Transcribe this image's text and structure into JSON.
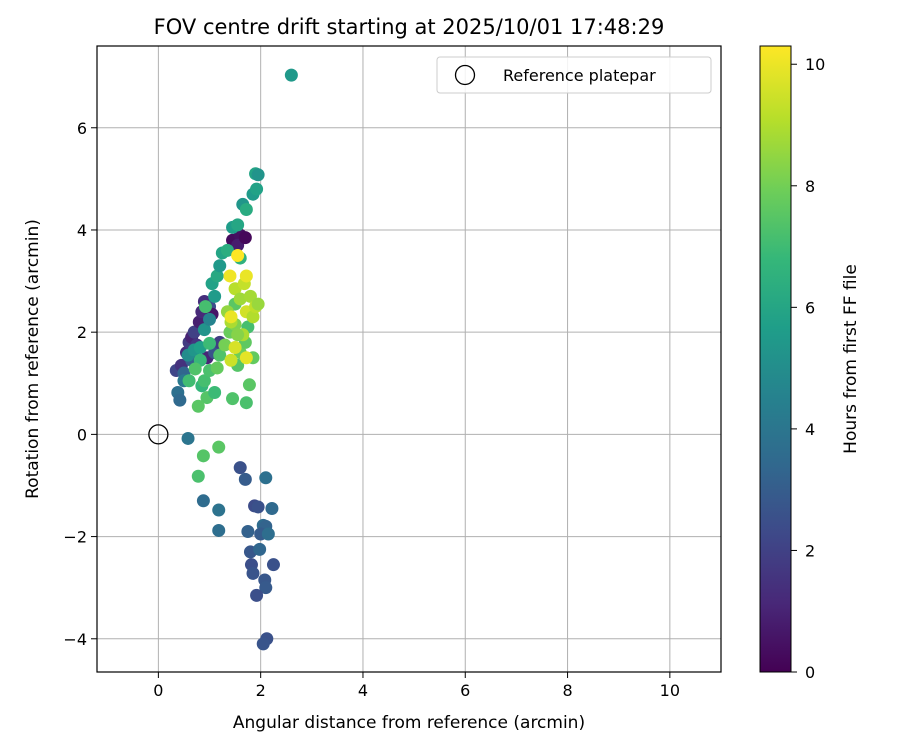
{
  "chart_data": {
    "type": "scatter",
    "title": "FOV centre drift starting at 2025/10/01 17:48:29",
    "xlabel": "Angular distance from reference (arcmin)",
    "ylabel": "Rotation from reference (arcmin)",
    "xlim": [
      -1.2,
      11.0
    ],
    "ylim": [
      -4.65,
      7.6
    ],
    "xticks": [
      0,
      2,
      4,
      6,
      8,
      10
    ],
    "yticks": [
      -4,
      -2,
      0,
      2,
      4,
      6
    ],
    "xtick_labels": [
      "0",
      "2",
      "4",
      "6",
      "8",
      "10"
    ],
    "ytick_labels": [
      "−4",
      "−2",
      "0",
      "2",
      "4",
      "6"
    ],
    "grid": true,
    "legend": {
      "placement": "top-right",
      "entries": [
        "Reference platepar"
      ]
    },
    "reference_point": {
      "x": 0,
      "y": 0,
      "label": "Reference platepar"
    },
    "colorbar": {
      "label": "Hours from first FF file",
      "min": 0,
      "max": 10.3,
      "ticks": [
        0,
        2,
        4,
        6,
        8,
        10
      ],
      "tick_labels": [
        "0",
        "2",
        "4",
        "6",
        "8",
        "10"
      ],
      "colormap": "viridis"
    },
    "points": [
      {
        "x": 0.35,
        "y": 1.25,
        "h": 2.2
      },
      {
        "x": 0.45,
        "y": 1.35,
        "h": 1.5
      },
      {
        "x": 0.55,
        "y": 1.6,
        "h": 1.3
      },
      {
        "x": 0.6,
        "y": 1.8,
        "h": 1.8
      },
      {
        "x": 0.65,
        "y": 1.9,
        "h": 1.0
      },
      {
        "x": 0.7,
        "y": 2.0,
        "h": 2.0
      },
      {
        "x": 0.75,
        "y": 1.75,
        "h": 1.6
      },
      {
        "x": 0.8,
        "y": 2.2,
        "h": 0.9
      },
      {
        "x": 0.85,
        "y": 2.4,
        "h": 1.2
      },
      {
        "x": 0.9,
        "y": 2.6,
        "h": 1.4
      },
      {
        "x": 1.0,
        "y": 2.5,
        "h": 2.5
      },
      {
        "x": 1.05,
        "y": 2.35,
        "h": 0.6
      },
      {
        "x": 0.95,
        "y": 1.5,
        "h": 1.1
      },
      {
        "x": 1.1,
        "y": 1.6,
        "h": 2.7
      },
      {
        "x": 1.2,
        "y": 1.8,
        "h": 1.9
      },
      {
        "x": 1.45,
        "y": 3.8,
        "h": 0.3
      },
      {
        "x": 1.6,
        "y": 3.9,
        "h": 0.4
      },
      {
        "x": 1.55,
        "y": 3.7,
        "h": 0.8
      },
      {
        "x": 1.7,
        "y": 3.85,
        "h": 0.2
      },
      {
        "x": 0.5,
        "y": 1.2,
        "h": 3.4
      },
      {
        "x": 0.65,
        "y": 1.45,
        "h": 3.2
      },
      {
        "x": 0.38,
        "y": 0.82,
        "h": 3.8
      },
      {
        "x": 0.42,
        "y": 0.67,
        "h": 3.5
      },
      {
        "x": 0.5,
        "y": 1.05,
        "h": 4.2
      },
      {
        "x": 0.58,
        "y": 1.55,
        "h": 5.0
      },
      {
        "x": 0.7,
        "y": 1.65,
        "h": 5.4
      },
      {
        "x": 0.82,
        "y": 1.7,
        "h": 5.8
      },
      {
        "x": 0.9,
        "y": 2.05,
        "h": 5.3
      },
      {
        "x": 1.0,
        "y": 2.25,
        "h": 4.6
      },
      {
        "x": 1.1,
        "y": 2.7,
        "h": 5.6
      },
      {
        "x": 1.05,
        "y": 2.95,
        "h": 5.9
      },
      {
        "x": 1.15,
        "y": 3.1,
        "h": 6.2
      },
      {
        "x": 1.2,
        "y": 3.3,
        "h": 5.5
      },
      {
        "x": 1.25,
        "y": 3.55,
        "h": 6.0
      },
      {
        "x": 1.35,
        "y": 3.6,
        "h": 6.4
      },
      {
        "x": 1.45,
        "y": 4.05,
        "h": 5.7
      },
      {
        "x": 1.55,
        "y": 4.1,
        "h": 6.1
      },
      {
        "x": 1.6,
        "y": 3.45,
        "h": 6.6
      },
      {
        "x": 1.65,
        "y": 4.5,
        "h": 5.4
      },
      {
        "x": 1.72,
        "y": 4.4,
        "h": 6.3
      },
      {
        "x": 1.85,
        "y": 4.7,
        "h": 5.6
      },
      {
        "x": 1.92,
        "y": 4.8,
        "h": 5.9
      },
      {
        "x": 1.9,
        "y": 5.1,
        "h": 6.0
      },
      {
        "x": 1.95,
        "y": 5.08,
        "h": 5.3
      },
      {
        "x": 2.6,
        "y": 7.03,
        "h": 5.5
      },
      {
        "x": 0.85,
        "y": 0.95,
        "h": 6.8
      },
      {
        "x": 0.9,
        "y": 1.05,
        "h": 7.2
      },
      {
        "x": 0.95,
        "y": 0.72,
        "h": 7.5
      },
      {
        "x": 0.78,
        "y": 0.55,
        "h": 7.6
      },
      {
        "x": 1.1,
        "y": 0.82,
        "h": 7.0
      },
      {
        "x": 1.0,
        "y": 1.25,
        "h": 7.3
      },
      {
        "x": 1.15,
        "y": 1.3,
        "h": 7.8
      },
      {
        "x": 1.2,
        "y": 1.55,
        "h": 7.4
      },
      {
        "x": 1.3,
        "y": 1.75,
        "h": 8.1
      },
      {
        "x": 1.4,
        "y": 2.0,
        "h": 7.9
      },
      {
        "x": 1.5,
        "y": 2.15,
        "h": 8.3
      },
      {
        "x": 1.5,
        "y": 2.55,
        "h": 7.6
      },
      {
        "x": 1.55,
        "y": 1.35,
        "h": 7.5
      },
      {
        "x": 1.6,
        "y": 1.6,
        "h": 8.0
      },
      {
        "x": 1.7,
        "y": 1.8,
        "h": 7.7
      },
      {
        "x": 1.75,
        "y": 2.1,
        "h": 7.2
      },
      {
        "x": 1.85,
        "y": 1.5,
        "h": 7.8
      },
      {
        "x": 1.45,
        "y": 0.7,
        "h": 7.4
      },
      {
        "x": 1.72,
        "y": 0.62,
        "h": 7.3
      },
      {
        "x": 1.78,
        "y": 0.97,
        "h": 7.6
      },
      {
        "x": 0.82,
        "y": 1.45,
        "h": 6.9
      },
      {
        "x": 0.6,
        "y": 1.05,
        "h": 7.1
      },
      {
        "x": 0.72,
        "y": 1.28,
        "h": 7.4
      },
      {
        "x": 1.0,
        "y": 1.78,
        "h": 7.0
      },
      {
        "x": 0.92,
        "y": 2.5,
        "h": 7.2
      },
      {
        "x": 0.88,
        "y": -0.42,
        "h": 7.5
      },
      {
        "x": 0.78,
        "y": -0.82,
        "h": 7.3
      },
      {
        "x": 1.18,
        "y": -0.25,
        "h": 7.6
      },
      {
        "x": 1.35,
        "y": 2.4,
        "h": 8.6
      },
      {
        "x": 1.42,
        "y": 2.2,
        "h": 9.0
      },
      {
        "x": 1.5,
        "y": 2.85,
        "h": 9.2
      },
      {
        "x": 1.6,
        "y": 2.65,
        "h": 8.8
      },
      {
        "x": 1.68,
        "y": 2.95,
        "h": 9.4
      },
      {
        "x": 1.72,
        "y": 2.4,
        "h": 9.6
      },
      {
        "x": 1.8,
        "y": 2.7,
        "h": 8.9
      },
      {
        "x": 1.85,
        "y": 2.3,
        "h": 9.1
      },
      {
        "x": 1.9,
        "y": 2.5,
        "h": 9.3
      },
      {
        "x": 1.95,
        "y": 2.55,
        "h": 8.7
      },
      {
        "x": 1.65,
        "y": 1.95,
        "h": 9.0
      },
      {
        "x": 1.42,
        "y": 1.45,
        "h": 9.5
      },
      {
        "x": 1.5,
        "y": 1.7,
        "h": 9.7
      },
      {
        "x": 1.72,
        "y": 1.5,
        "h": 9.9
      },
      {
        "x": 1.42,
        "y": 2.3,
        "h": 10.0
      },
      {
        "x": 1.4,
        "y": 3.1,
        "h": 10.1
      },
      {
        "x": 1.55,
        "y": 3.5,
        "h": 10.3
      },
      {
        "x": 1.72,
        "y": 3.1,
        "h": 10.0
      },
      {
        "x": 1.55,
        "y": 1.95,
        "h": 8.4
      },
      {
        "x": 0.58,
        "y": -0.08,
        "h": 4.0
      },
      {
        "x": 0.88,
        "y": -1.3,
        "h": 3.6
      },
      {
        "x": 1.18,
        "y": -1.48,
        "h": 3.9
      },
      {
        "x": 1.18,
        "y": -1.88,
        "h": 3.7
      },
      {
        "x": 1.6,
        "y": -0.65,
        "h": 2.6
      },
      {
        "x": 1.7,
        "y": -0.88,
        "h": 3.0
      },
      {
        "x": 2.1,
        "y": -0.85,
        "h": 3.8
      },
      {
        "x": 1.88,
        "y": -1.4,
        "h": 2.4
      },
      {
        "x": 1.95,
        "y": -1.42,
        "h": 2.6
      },
      {
        "x": 1.75,
        "y": -1.9,
        "h": 3.2
      },
      {
        "x": 2.05,
        "y": -1.78,
        "h": 3.6
      },
      {
        "x": 2.1,
        "y": -1.8,
        "h": 3.3
      },
      {
        "x": 2.0,
        "y": -1.95,
        "h": 3.0
      },
      {
        "x": 2.15,
        "y": -1.95,
        "h": 3.7
      },
      {
        "x": 2.22,
        "y": -1.45,
        "h": 3.5
      },
      {
        "x": 1.8,
        "y": -2.3,
        "h": 2.8
      },
      {
        "x": 1.98,
        "y": -2.25,
        "h": 3.4
      },
      {
        "x": 1.82,
        "y": -2.55,
        "h": 2.5
      },
      {
        "x": 1.85,
        "y": -2.72,
        "h": 2.7
      },
      {
        "x": 2.25,
        "y": -2.55,
        "h": 2.6
      },
      {
        "x": 2.08,
        "y": -2.85,
        "h": 2.8
      },
      {
        "x": 2.1,
        "y": -3.0,
        "h": 2.9
      },
      {
        "x": 1.92,
        "y": -3.15,
        "h": 2.5
      },
      {
        "x": 2.12,
        "y": -4.0,
        "h": 2.6
      },
      {
        "x": 2.05,
        "y": -4.1,
        "h": 2.7
      }
    ]
  }
}
